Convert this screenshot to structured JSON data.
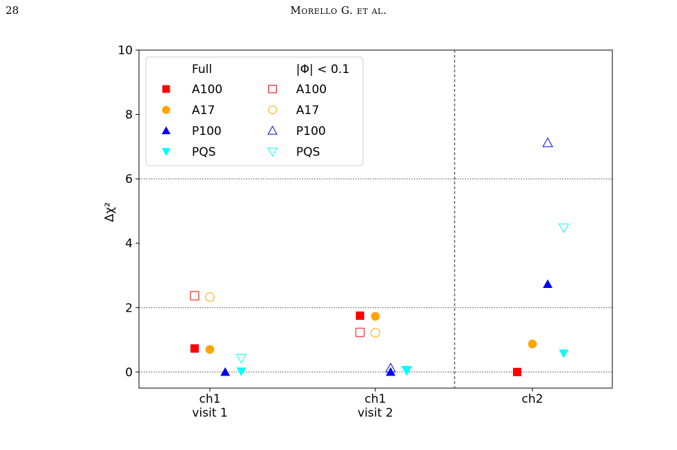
{
  "page": {
    "page_number": "28",
    "running_head": "Morello G. et al."
  },
  "chart_data": {
    "type": "scatter",
    "ylabel": "Δχ²",
    "ylim": [
      -0.5,
      10
    ],
    "yticks": [
      0,
      2,
      4,
      6,
      8,
      10
    ],
    "categories": [
      {
        "line1": "ch1",
        "line2": "visit 1"
      },
      {
        "line1": "ch1",
        "line2": "visit 2"
      },
      {
        "line1": "ch2",
        "line2": ""
      }
    ],
    "grid": "horizontal dotted at 0, 2, 6",
    "separator": "vertical dashed line between ch1 visit 2 and ch2",
    "legend": {
      "placement": "top-left",
      "col_headers": [
        "Full",
        "|Φ| < 0.1"
      ],
      "labels": [
        "A100",
        "A17",
        "P100",
        "PQS"
      ]
    },
    "series": [
      {
        "name": "A100",
        "group": "Full",
        "marker": "square",
        "filled": true,
        "color": "#ff0000",
        "values": [
          0.73,
          1.75,
          0.0
        ]
      },
      {
        "name": "A17",
        "group": "Full",
        "marker": "circle",
        "filled": true,
        "color": "#ffa500",
        "values": [
          0.7,
          1.73,
          0.87
        ]
      },
      {
        "name": "P100",
        "group": "Full",
        "marker": "triangle-up",
        "filled": true,
        "color": "#0000ff",
        "values": [
          0.0,
          0.0,
          2.73
        ]
      },
      {
        "name": "PQS",
        "group": "Full",
        "marker": "triangle-down",
        "filled": true,
        "color": "#00ffff",
        "values": [
          0.02,
          0.07,
          0.58
        ]
      },
      {
        "name": "A100",
        "group": "|Φ| < 0.1",
        "marker": "square",
        "filled": false,
        "color": "#ff0000",
        "values": [
          2.37,
          1.23,
          null
        ]
      },
      {
        "name": "A17",
        "group": "|Φ| < 0.1",
        "marker": "circle",
        "filled": false,
        "color": "#ffa500",
        "values": [
          2.33,
          1.22,
          null
        ]
      },
      {
        "name": "P100",
        "group": "|Φ| < 0.1",
        "marker": "triangle-up",
        "filled": false,
        "color": "#0000ff",
        "values": [
          null,
          0.12,
          7.12
        ]
      },
      {
        "name": "PQS",
        "group": "|Φ| < 0.1",
        "marker": "triangle-down",
        "filled": false,
        "color": "#00ffff",
        "values": [
          0.43,
          0.05,
          4.48
        ]
      }
    ]
  }
}
